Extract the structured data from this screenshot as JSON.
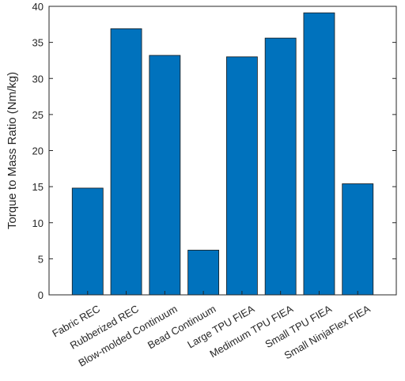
{
  "chart_data": {
    "type": "bar",
    "title": "",
    "xlabel": "",
    "ylabel": "Torque to Mass Ratio (Nm/kg)",
    "categories": [
      "Fabric REC",
      "Rubberized REC",
      "Blow-molded Continuum",
      "Bead Continuum",
      "Large TPU FIEA",
      "Medimum TPU FIEA",
      "Small TPU FIEA",
      "Small NinjaFlex FIEA"
    ],
    "values": [
      14.8,
      36.9,
      33.2,
      6.2,
      33.0,
      35.6,
      39.1,
      15.4
    ],
    "ylim": [
      0,
      40
    ],
    "yticks": [
      0,
      5,
      10,
      15,
      20,
      25,
      30,
      35,
      40
    ],
    "grid": false,
    "legend": "none",
    "bar_color": "#0072BD"
  }
}
